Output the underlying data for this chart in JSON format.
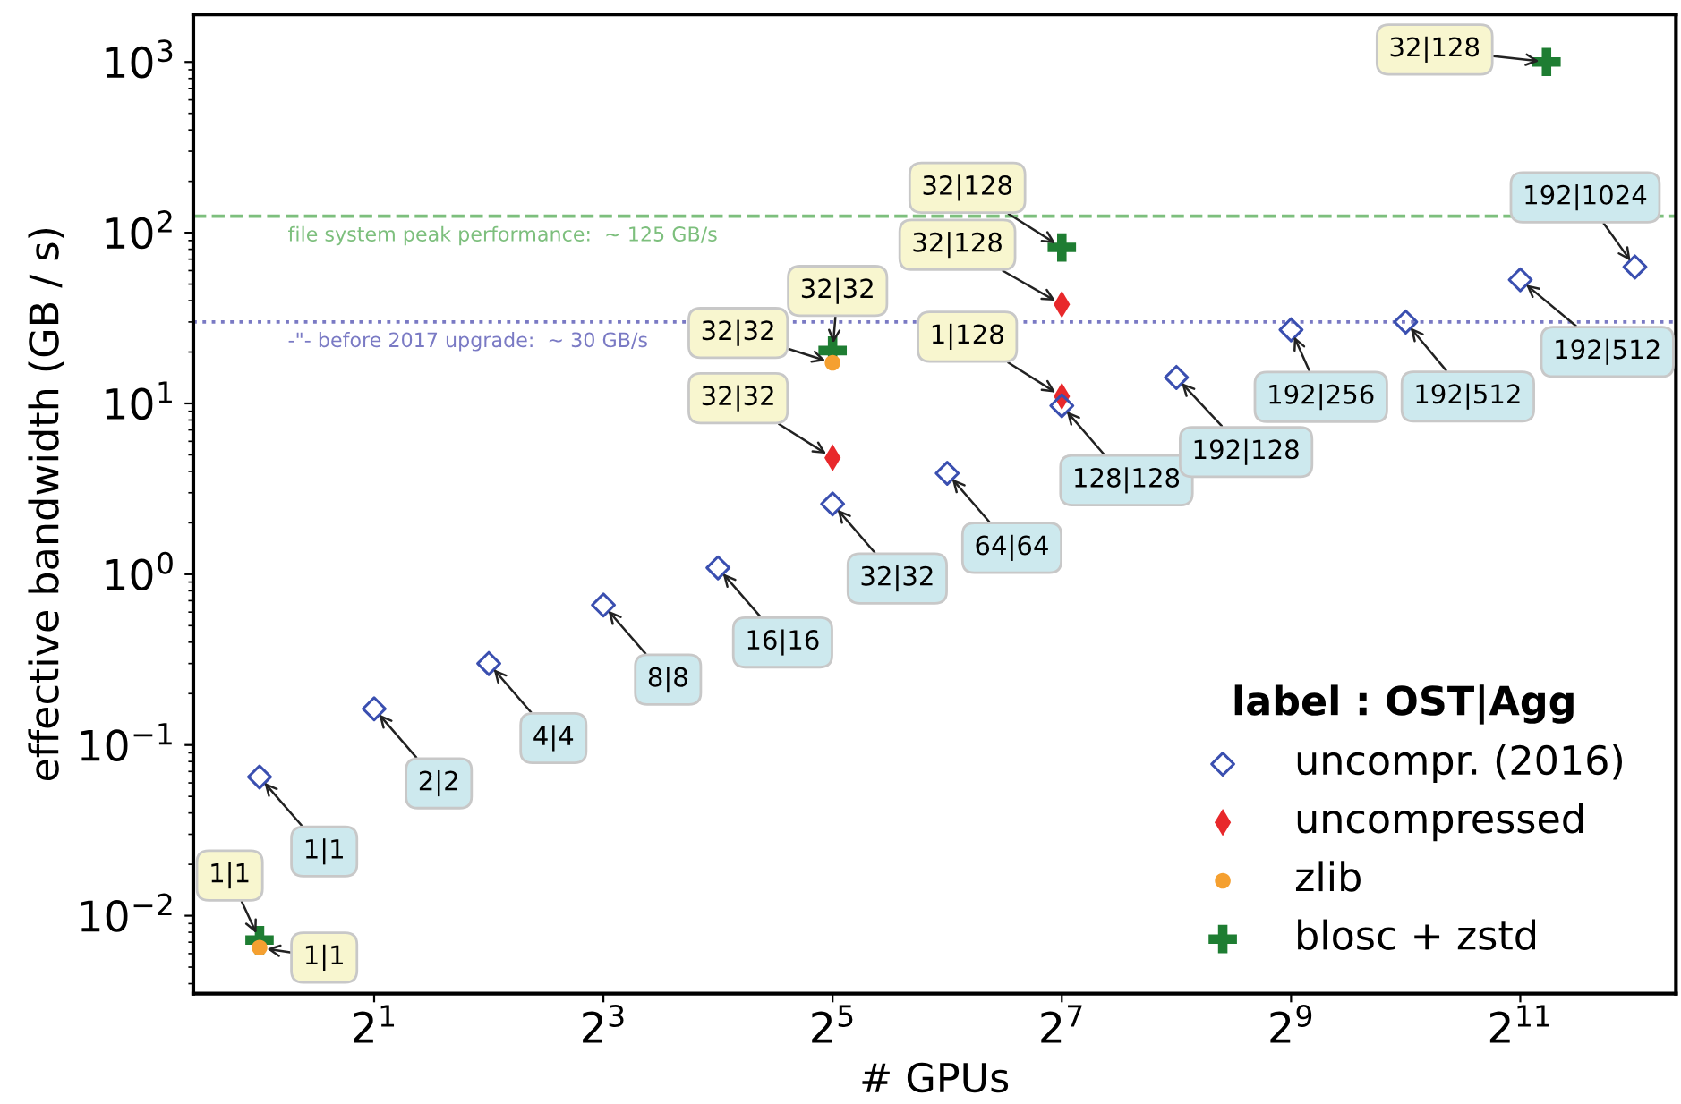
{
  "chart_data": {
    "type": "scatter",
    "xlabel": "# GPUs",
    "ylabel": "effective bandwidth (GB / s)",
    "legend_title": "label : OST|Agg",
    "legend": "bottom right",
    "log": "xy",
    "grid": false,
    "xlim": [
      0.67,
      5250
    ],
    "ylim": [
      0.0035,
      1900
    ],
    "xticks": [
      {
        "value": 2,
        "label": "2$^{1}$"
      },
      {
        "value": 8,
        "label": "2$^{3}$"
      },
      {
        "value": 32,
        "label": "2$^{5}$"
      },
      {
        "value": 128,
        "label": "2$^{7}$"
      },
      {
        "value": 512,
        "label": "2$^{9}$"
      },
      {
        "value": 2048,
        "label": "2$^{11}$"
      }
    ],
    "yticks": [
      {
        "value": 0.01,
        "label": "10$^{−2}$"
      },
      {
        "value": 0.1,
        "label": "10$^{−1}$"
      },
      {
        "value": 1,
        "label": "10$^{0}$"
      },
      {
        "value": 10,
        "label": "10$^{1}$"
      },
      {
        "value": 100,
        "label": "10$^{2}$"
      },
      {
        "value": 1000,
        "label": "10$^{3}$"
      }
    ],
    "series": [
      {
        "name": "uncompr. (2016)",
        "color": "#3a4fb0",
        "marker": "diamond",
        "x": [
          1,
          2,
          4,
          8,
          16,
          32,
          64,
          128,
          256,
          512,
          1024,
          2048,
          4096
        ],
        "values": [
          0.065,
          0.163,
          0.3,
          0.66,
          1.09,
          2.58,
          3.9,
          9.7,
          14.2,
          27,
          30,
          53,
          63
        ]
      },
      {
        "name": "uncompressed",
        "color": "#e8282b",
        "marker": "diamond",
        "x": [
          32,
          128,
          128
        ],
        "values": [
          4.8,
          38,
          11
        ]
      },
      {
        "name": "zlib",
        "color": "#f5a030",
        "marker": "circle",
        "x": [
          1,
          32
        ],
        "values": [
          0.0065,
          17.3
        ]
      },
      {
        "name": "blosc + zstd",
        "color": "#1e7d32",
        "marker": "cross",
        "x": [
          1,
          32,
          128,
          2400
        ],
        "values": [
          0.0072,
          20.4,
          82,
          1000
        ]
      }
    ],
    "ref_lines": [
      {
        "axis": "y",
        "value": 125,
        "label": "file system peak performance:  ~ 125 GB/s",
        "color": "#7dbf7d",
        "line_style": "dashed"
      },
      {
        "axis": "y",
        "value": 30,
        "label": "-\"- before 2017 upgrade:  ~ 30 GB/s",
        "color": "#7a7ac4",
        "line_style": "dotted"
      }
    ],
    "annotations": [
      {
        "text": "1|1",
        "x": 1,
        "y": 0.065
      },
      {
        "text": "2|2",
        "x": 2,
        "y": 0.163
      },
      {
        "text": "4|4",
        "x": 4,
        "y": 0.3
      },
      {
        "text": "8|8",
        "x": 8,
        "y": 0.66
      },
      {
        "text": "16|16",
        "x": 16,
        "y": 1.09
      },
      {
        "text": "32|32",
        "x": 32,
        "y": 2.58
      },
      {
        "text": "64|64",
        "x": 64,
        "y": 3.9
      },
      {
        "text": "128|128",
        "x": 128,
        "y": 9.7
      },
      {
        "text": "192|128",
        "x": 256,
        "y": 14.2
      },
      {
        "text": "192|256",
        "x": 512,
        "y": 27
      },
      {
        "text": "192|512",
        "x": 1024,
        "y": 30
      },
      {
        "text": "192|512",
        "x": 2048,
        "y": 53
      },
      {
        "text": "192|1024",
        "x": 4096,
        "y": 63
      },
      {
        "text": "32|32",
        "x": 32,
        "y": 4.8
      },
      {
        "text": "32|128",
        "x": 128,
        "y": 38
      },
      {
        "text": "1|128",
        "x": 128,
        "y": 11
      },
      {
        "text": "1|1",
        "x": 1,
        "y": 0.0065
      },
      {
        "text": "32|32",
        "x": 32,
        "y": 17.3
      },
      {
        "text": "1|1",
        "x": 1,
        "y": 0.0072
      },
      {
        "text": "32|32",
        "x": 32,
        "y": 20.4
      },
      {
        "text": "32|128",
        "x": 128,
        "y": 82
      },
      {
        "text": "32|128",
        "x": 2400,
        "y": 1000
      }
    ]
  }
}
